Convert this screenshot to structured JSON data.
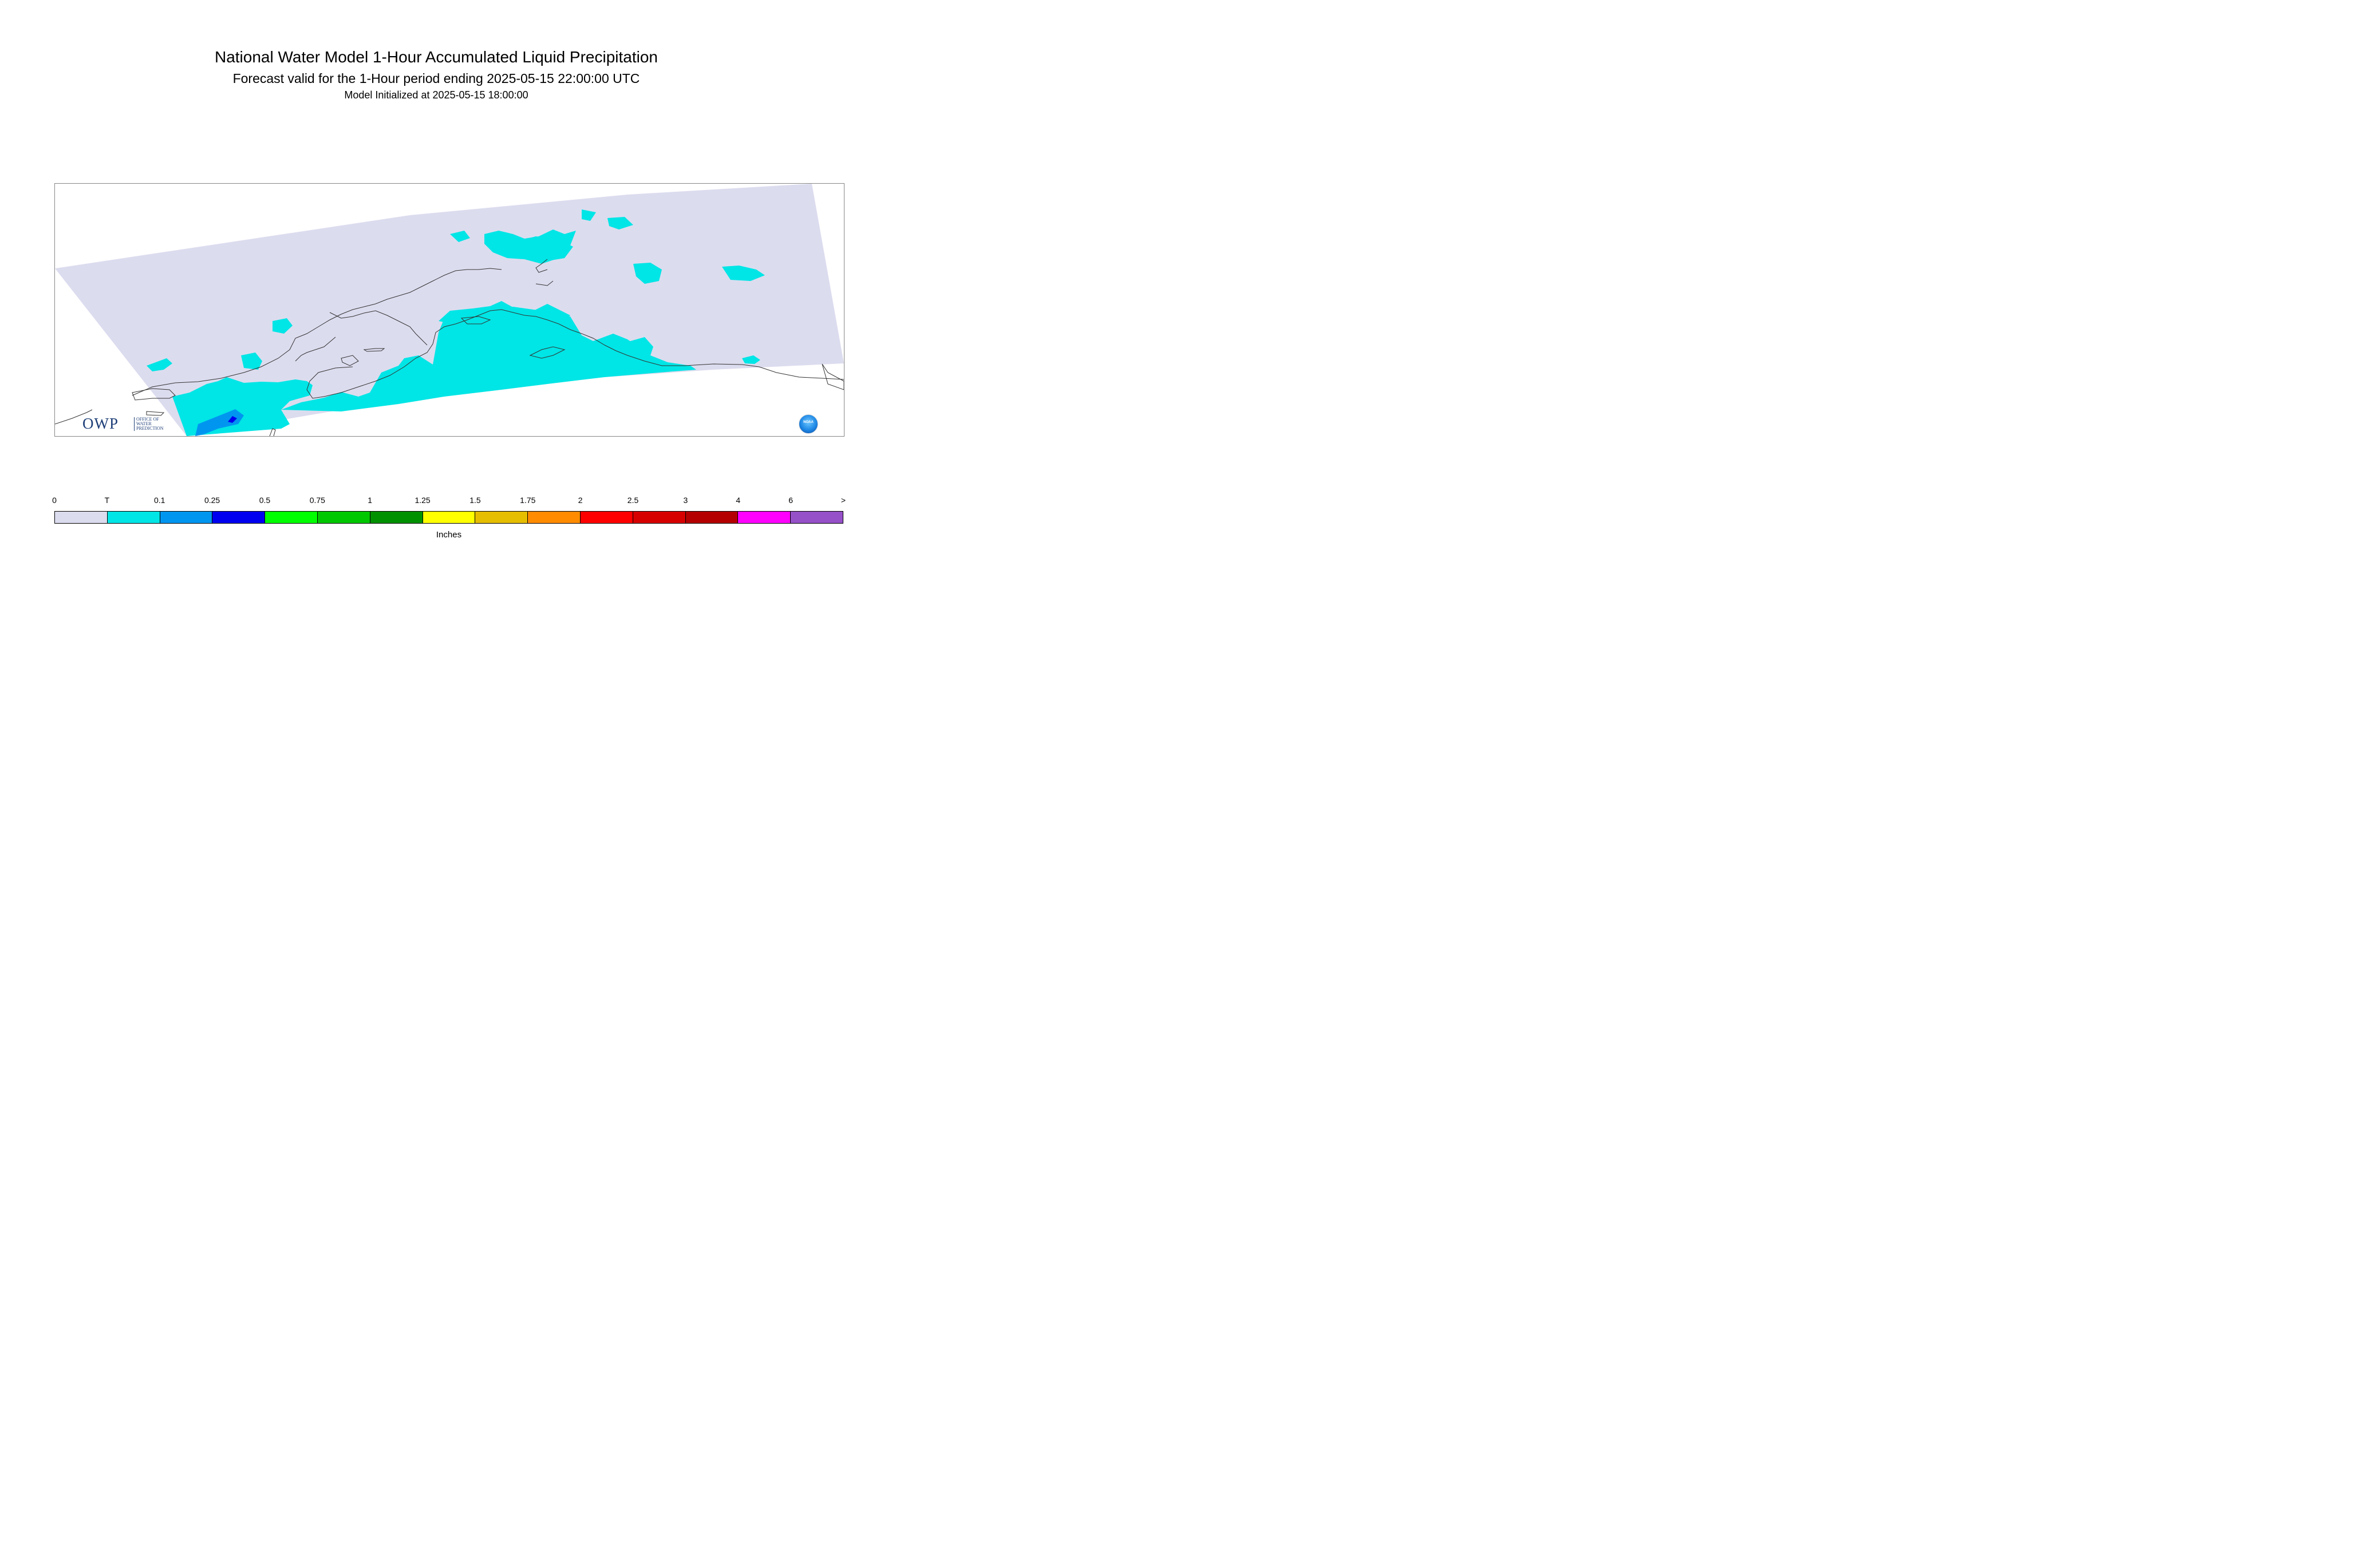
{
  "title": "National Water Model 1-Hour Accumulated Liquid Precipitation",
  "subtitle": "Forecast valid for the 1-Hour period ending 2025-05-15 22:00:00 UTC",
  "init_line": "Model Initialized at 2025-05-15 18:00:00",
  "logos": {
    "owp_main": "OWP",
    "owp_small_1": "OFFICE OF",
    "owp_small_2": "WATER",
    "owp_small_3": "PREDICTION",
    "noaa": "NOAA"
  },
  "legend": {
    "labels": [
      "0",
      "T",
      "0.1",
      "0.25",
      "0.5",
      "0.75",
      "1",
      "1.25",
      "1.5",
      "1.75",
      "2",
      "2.5",
      "3",
      "4",
      "6",
      ">"
    ],
    "colors": [
      "#dcdcef",
      "#00e5e5",
      "#0096f0",
      "#0000f0",
      "#00ff00",
      "#00c800",
      "#009100",
      "#ffff00",
      "#e6be00",
      "#ff8c00",
      "#ff0000",
      "#d70000",
      "#b40000",
      "#ff00ff",
      "#9650c8"
    ],
    "units": "Inches"
  },
  "map": {
    "domain_fill": "#dcdcef",
    "trace_color": "#00e5e5",
    "light_color": "#0096f0",
    "heavy_color": "#0000f0",
    "coast_color": "#333333"
  }
}
